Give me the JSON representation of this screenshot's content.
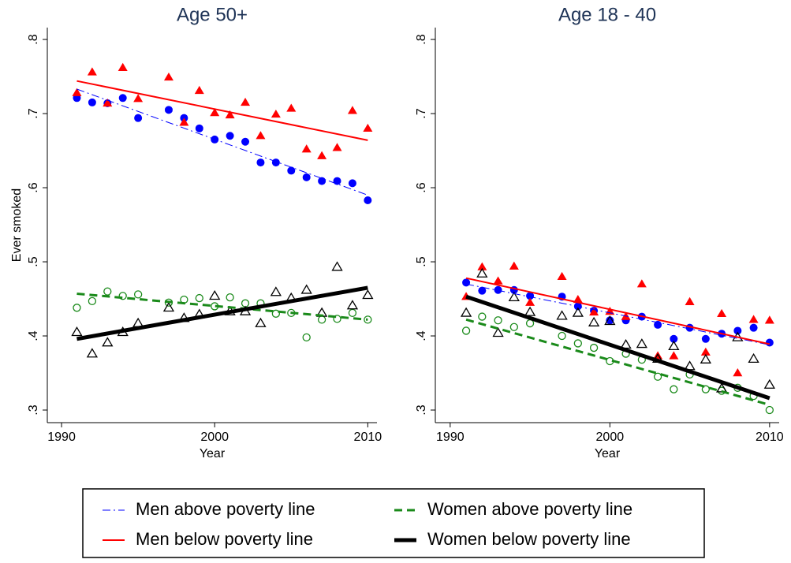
{
  "chart_data": [
    {
      "type": "scatter",
      "title": "Age 50+",
      "x_label": "Year",
      "y_label": "Ever smoked",
      "x": [
        1991,
        1992,
        1993,
        1994,
        1995,
        1997,
        1998,
        1999,
        2000,
        2001,
        2002,
        2003,
        2004,
        2005,
        2006,
        2007,
        2008,
        2009,
        2010
      ],
      "xlim": [
        1989.07,
        2010.6
      ],
      "xticks": [
        1990,
        2000,
        2010
      ],
      "ylim": [
        0.283,
        0.816
      ],
      "yticks": [
        {
          "value": 0.3,
          "label": ".3"
        },
        {
          "value": 0.4,
          "label": ".4"
        },
        {
          "value": 0.5,
          "label": ".5"
        },
        {
          "value": 0.6,
          "label": ".6"
        },
        {
          "value": 0.7,
          "label": ".7"
        },
        {
          "value": 0.8,
          "label": ".8"
        }
      ],
      "series": [
        {
          "name": "Men above poverty line",
          "color": "#0000ff",
          "marker": "circle",
          "filled": true,
          "line_style": "dashdot",
          "line_width": 1,
          "values": [
            0.721,
            0.715,
            0.714,
            0.721,
            0.694,
            0.705,
            0.694,
            0.68,
            0.665,
            0.67,
            0.662,
            0.634,
            0.634,
            0.623,
            0.614,
            0.609,
            0.609,
            0.606,
            0.583
          ],
          "fit": [
            0.733,
            0.59
          ]
        },
        {
          "name": "Men below poverty line",
          "color": "#ff0000",
          "marker": "triangle",
          "filled": true,
          "line_style": "solid",
          "line_width": 2,
          "values": [
            0.728,
            0.756,
            0.714,
            0.762,
            0.72,
            0.749,
            0.688,
            0.731,
            0.701,
            0.698,
            0.715,
            0.67,
            0.699,
            0.707,
            0.652,
            0.643,
            0.654,
            0.704,
            0.68
          ],
          "fit": [
            0.744,
            0.664
          ]
        },
        {
          "name": "Women above poverty line",
          "color": "#1a8a1a",
          "marker": "circle",
          "filled": false,
          "line_style": "dashed",
          "line_width": 3,
          "values": [
            0.438,
            0.447,
            0.46,
            0.454,
            0.456,
            0.445,
            0.449,
            0.451,
            0.44,
            0.452,
            0.444,
            0.444,
            0.43,
            0.431,
            0.398,
            0.422,
            0.423,
            0.431,
            0.422
          ],
          "fit": [
            0.457,
            0.422
          ]
        },
        {
          "name": "Women below poverty line",
          "color": "#000000",
          "marker": "triangle",
          "filled": false,
          "line_style": "solid",
          "line_width": 5,
          "values": [
            0.405,
            0.376,
            0.391,
            0.405,
            0.417,
            0.438,
            0.424,
            0.429,
            0.454,
            0.433,
            0.433,
            0.417,
            0.459,
            0.451,
            0.462,
            0.431,
            0.493,
            0.441,
            0.455
          ],
          "fit": [
            0.396,
            0.465
          ]
        }
      ]
    },
    {
      "type": "scatter",
      "title": "Age 18 - 40",
      "x_label": "Year",
      "x": [
        1991,
        1992,
        1993,
        1994,
        1995,
        1997,
        1998,
        1999,
        2000,
        2001,
        2002,
        2003,
        2004,
        2005,
        2006,
        2007,
        2008,
        2009,
        2010
      ],
      "xlim": [
        1989.07,
        2010.6
      ],
      "xticks": [
        1990,
        2000,
        2010
      ],
      "ylim": [
        0.283,
        0.816
      ],
      "yticks": [
        {
          "value": 0.3,
          "label": ".3"
        },
        {
          "value": 0.4,
          "label": ".4"
        },
        {
          "value": 0.5,
          "label": ".5"
        },
        {
          "value": 0.6,
          "label": ".6"
        },
        {
          "value": 0.7,
          "label": ".7"
        },
        {
          "value": 0.8,
          "label": ".8"
        }
      ],
      "series": [
        {
          "name": "Men above poverty line",
          "color": "#0000ff",
          "marker": "circle",
          "filled": true,
          "line_style": "dashdot",
          "line_width": 1,
          "values": [
            0.472,
            0.461,
            0.462,
            0.462,
            0.454,
            0.453,
            0.44,
            0.434,
            0.421,
            0.421,
            0.426,
            0.415,
            0.396,
            0.411,
            0.396,
            0.403,
            0.407,
            0.411,
            0.391
          ],
          "fit": [
            0.47,
            0.388
          ]
        },
        {
          "name": "Men below poverty line",
          "color": "#ff0000",
          "marker": "triangle",
          "filled": true,
          "line_style": "solid",
          "line_width": 2,
          "values": [
            0.453,
            0.493,
            0.474,
            0.494,
            0.445,
            0.48,
            0.449,
            0.432,
            0.433,
            0.426,
            0.47,
            0.373,
            0.373,
            0.446,
            0.378,
            0.43,
            0.35,
            0.422,
            0.421
          ],
          "fit": [
            0.478,
            0.389
          ]
        },
        {
          "name": "Women above poverty line",
          "color": "#1a8a1a",
          "marker": "circle",
          "filled": false,
          "line_style": "dashed",
          "line_width": 3,
          "values": [
            0.407,
            0.426,
            0.421,
            0.412,
            0.417,
            0.4,
            0.39,
            0.384,
            0.366,
            0.376,
            0.368,
            0.345,
            0.328,
            0.348,
            0.328,
            0.326,
            0.33,
            0.319,
            0.3
          ],
          "fit": [
            0.422,
            0.307
          ]
        },
        {
          "name": "Women below poverty line",
          "color": "#000000",
          "marker": "triangle",
          "filled": false,
          "line_style": "solid",
          "line_width": 5,
          "values": [
            0.431,
            0.484,
            0.404,
            0.452,
            0.432,
            0.427,
            0.431,
            0.418,
            0.42,
            0.388,
            0.389,
            0.369,
            0.386,
            0.359,
            0.368,
            0.329,
            0.398,
            0.369,
            0.334
          ],
          "fit": [
            0.453,
            0.316
          ]
        }
      ]
    }
  ]
}
